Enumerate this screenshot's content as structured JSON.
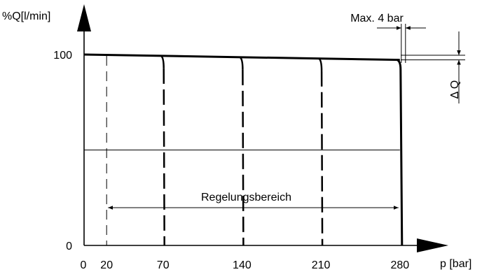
{
  "chart_data": {
    "type": "line",
    "xlabel": "p [bar]",
    "ylabel": "%Q[l/min]",
    "xlim": [
      0,
      300
    ],
    "ylim": [
      0,
      100
    ],
    "x_ticks": [
      0,
      20,
      70,
      140,
      210,
      280
    ],
    "y_ticks": [
      0,
      100
    ],
    "grid": false,
    "series": [
      {
        "x": [
          0,
          70,
          140,
          210,
          280
        ],
        "y": [
          100,
          99.3,
          98.6,
          97.9,
          97.2
        ]
      }
    ],
    "cutoff_lines": [
      70,
      140,
      210,
      280
    ],
    "annotations": {
      "max_label": "Max. 4 bar",
      "delta_label": "Δ Q",
      "range_label": "Regelungsbereich",
      "range": [
        20,
        280
      ]
    }
  }
}
